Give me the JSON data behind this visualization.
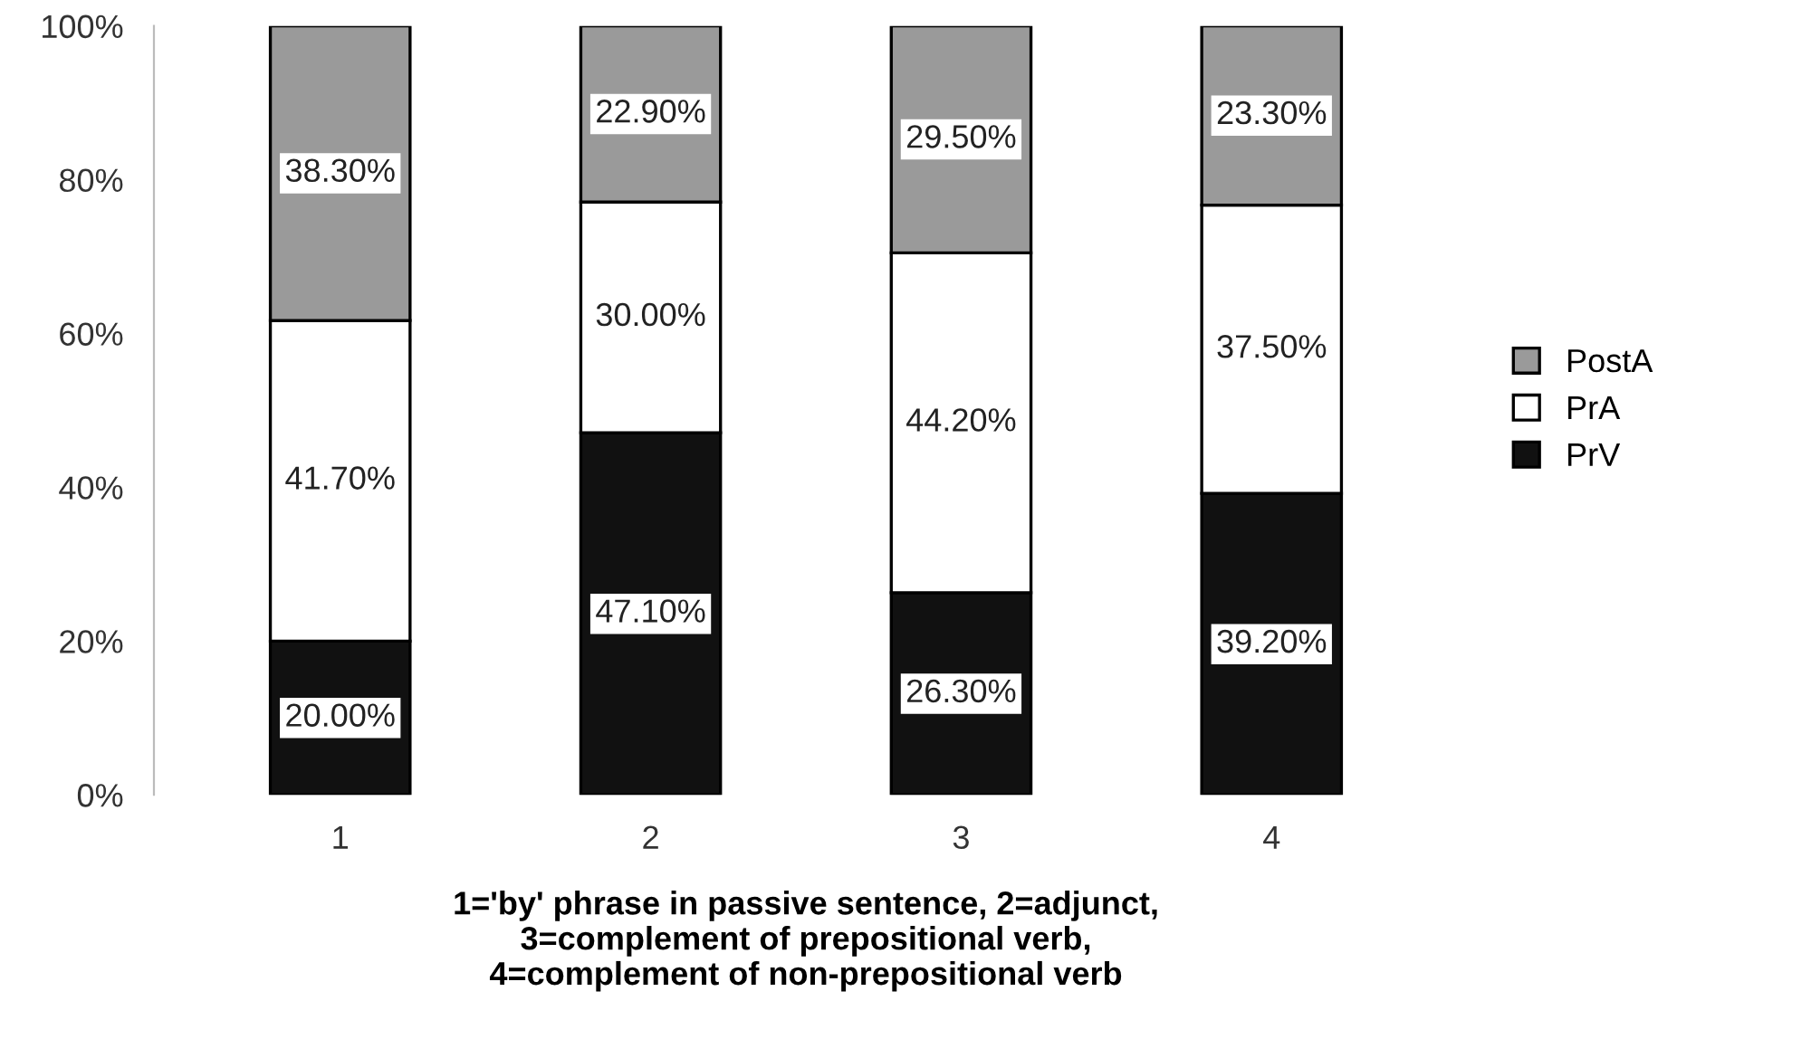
{
  "chart_data": {
    "type": "bar",
    "stacked": true,
    "categories": [
      "1",
      "2",
      "3",
      "4"
    ],
    "xlabel": "1='by' phrase in passive sentence, 2=adjunct,\n3=complement of prepositional verb,\n4=complement of non-prepositional verb",
    "series": [
      {
        "name": "PrV",
        "color": "#111111",
        "values": [
          20.0,
          47.1,
          26.3,
          39.2
        ],
        "value_labels": [
          "20.00%",
          "47.10%",
          "26.30%",
          "39.20%"
        ]
      },
      {
        "name": "PrA",
        "color": "#ffffff",
        "values": [
          41.7,
          30.0,
          44.2,
          37.5
        ],
        "value_labels": [
          "41.70%",
          "30.00%",
          "44.20%",
          "37.50%"
        ]
      },
      {
        "name": "PostA",
        "color": "#9a9a9a",
        "values": [
          38.3,
          22.9,
          29.5,
          23.3
        ],
        "value_labels": [
          "38.30%",
          "22.90%",
          "29.50%",
          "23.30%"
        ]
      }
    ],
    "ylim": [
      0,
      100
    ],
    "yticks": [
      {
        "value": 0,
        "label": "0%"
      },
      {
        "value": 20,
        "label": "20%"
      },
      {
        "value": 40,
        "label": "40%"
      },
      {
        "value": 60,
        "label": "60%"
      },
      {
        "value": 80,
        "label": "80%"
      },
      {
        "value": 100,
        "label": "100%"
      }
    ],
    "legend": "right",
    "grid": false
  }
}
